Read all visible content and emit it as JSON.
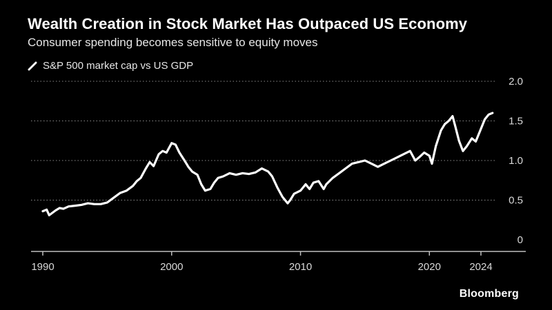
{
  "header": {
    "title": "Wealth Creation in Stock Market Has Outpaced US Economy",
    "subtitle": "Consumer spending becomes sensitive to equity moves"
  },
  "footer": {
    "brand": "Bloomberg"
  },
  "colors": {
    "background": "#000000",
    "line": "#ffffff",
    "grid": "#8c8c8c"
  },
  "chart_data": {
    "type": "line",
    "title": "Wealth Creation in Stock Market Has Outpaced US Economy",
    "subtitle": "Consumer spending becomes sensitive to equity moves",
    "xlabel": "",
    "ylabel": "",
    "xlim": [
      1989,
      2026
    ],
    "ylim": [
      0,
      2.0
    ],
    "x_ticks": [
      1990,
      2000,
      2010,
      2020,
      2024
    ],
    "y_ticks": [
      0,
      0.5,
      1.0,
      1.5,
      2.0
    ],
    "y_tick_labels": [
      "0",
      "0.5",
      "1.0",
      "1.5",
      "2.0"
    ],
    "grid": "horizontal dotted",
    "legend_position": "top-left",
    "series": [
      {
        "name": "S&P 500 market cap vs US GDP",
        "x": [
          1990.0,
          1990.3,
          1990.5,
          1990.75,
          1991.0,
          1991.3,
          1991.6,
          1992.0,
          1992.5,
          1993.0,
          1993.5,
          1994.0,
          1994.5,
          1995.0,
          1995.5,
          1996.0,
          1996.5,
          1997.0,
          1997.3,
          1997.6,
          1998.0,
          1998.3,
          1998.6,
          1999.0,
          1999.3,
          1999.6,
          2000.0,
          2000.3,
          2000.6,
          2001.0,
          2001.3,
          2001.6,
          2002.0,
          2002.3,
          2002.6,
          2003.0,
          2003.3,
          2003.6,
          2004.0,
          2004.5,
          2005.0,
          2005.5,
          2006.0,
          2006.5,
          2007.0,
          2007.5,
          2007.8,
          2008.2,
          2008.6,
          2009.0,
          2009.2,
          2009.5,
          2010.0,
          2010.4,
          2010.7,
          2011.0,
          2011.4,
          2011.8,
          2012.0,
          2012.5,
          2013.0,
          2013.5,
          2014.0,
          2014.5,
          2015.0,
          2015.5,
          2016.0,
          2016.5,
          2017.0,
          2017.5,
          2018.0,
          2018.5,
          2018.9,
          2019.2,
          2019.6,
          2020.0,
          2020.2,
          2020.5,
          2020.9,
          2021.2,
          2021.5,
          2021.8,
          2022.0,
          2022.3,
          2022.6,
          2022.9,
          2023.3,
          2023.6,
          2024.0,
          2024.3,
          2024.6,
          2024.9
        ],
        "values": [
          0.36,
          0.38,
          0.31,
          0.34,
          0.37,
          0.4,
          0.39,
          0.42,
          0.43,
          0.44,
          0.46,
          0.45,
          0.45,
          0.47,
          0.53,
          0.59,
          0.62,
          0.68,
          0.74,
          0.78,
          0.9,
          0.98,
          0.93,
          1.08,
          1.12,
          1.1,
          1.22,
          1.2,
          1.1,
          1.0,
          0.92,
          0.86,
          0.82,
          0.7,
          0.62,
          0.64,
          0.72,
          0.78,
          0.8,
          0.84,
          0.82,
          0.84,
          0.83,
          0.85,
          0.9,
          0.86,
          0.8,
          0.66,
          0.54,
          0.46,
          0.5,
          0.58,
          0.62,
          0.7,
          0.64,
          0.72,
          0.74,
          0.64,
          0.7,
          0.78,
          0.84,
          0.9,
          0.96,
          0.98,
          1.0,
          0.96,
          0.92,
          0.96,
          1.0,
          1.04,
          1.08,
          1.12,
          1.0,
          1.04,
          1.1,
          1.06,
          0.96,
          1.18,
          1.38,
          1.46,
          1.5,
          1.56,
          1.44,
          1.25,
          1.12,
          1.18,
          1.28,
          1.24,
          1.4,
          1.52,
          1.58,
          1.6
        ]
      }
    ]
  }
}
